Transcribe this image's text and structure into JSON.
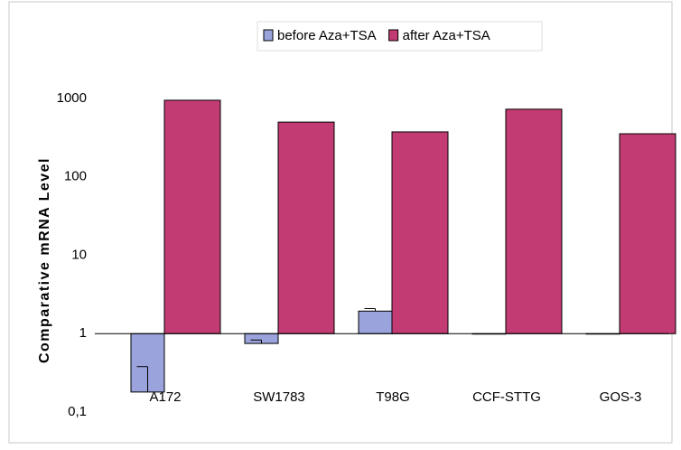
{
  "chart_data": {
    "type": "bar",
    "y_label": "Comparative mRNA Level",
    "categories": [
      "A172",
      "SW1783",
      "T98G",
      "CCF-STTG",
      "GOS-3"
    ],
    "series": [
      {
        "name": "before Aza+TSA",
        "color": "#9aa3dc",
        "values": [
          0.18,
          0.75,
          1.94,
          1,
          1
        ],
        "errors": [
          0.2,
          0.08,
          0.15,
          0,
          0
        ]
      },
      {
        "name": "after Aza+TSA",
        "color": "#c23b72",
        "values": [
          950,
          500,
          375,
          730,
          355
        ]
      }
    ],
    "log_scale": true,
    "ylim": [
      0.1,
      1000
    ],
    "yticks": [
      {
        "value": 0.1,
        "label": "0,1"
      },
      1,
      10,
      100,
      1000
    ],
    "legend": "top"
  }
}
